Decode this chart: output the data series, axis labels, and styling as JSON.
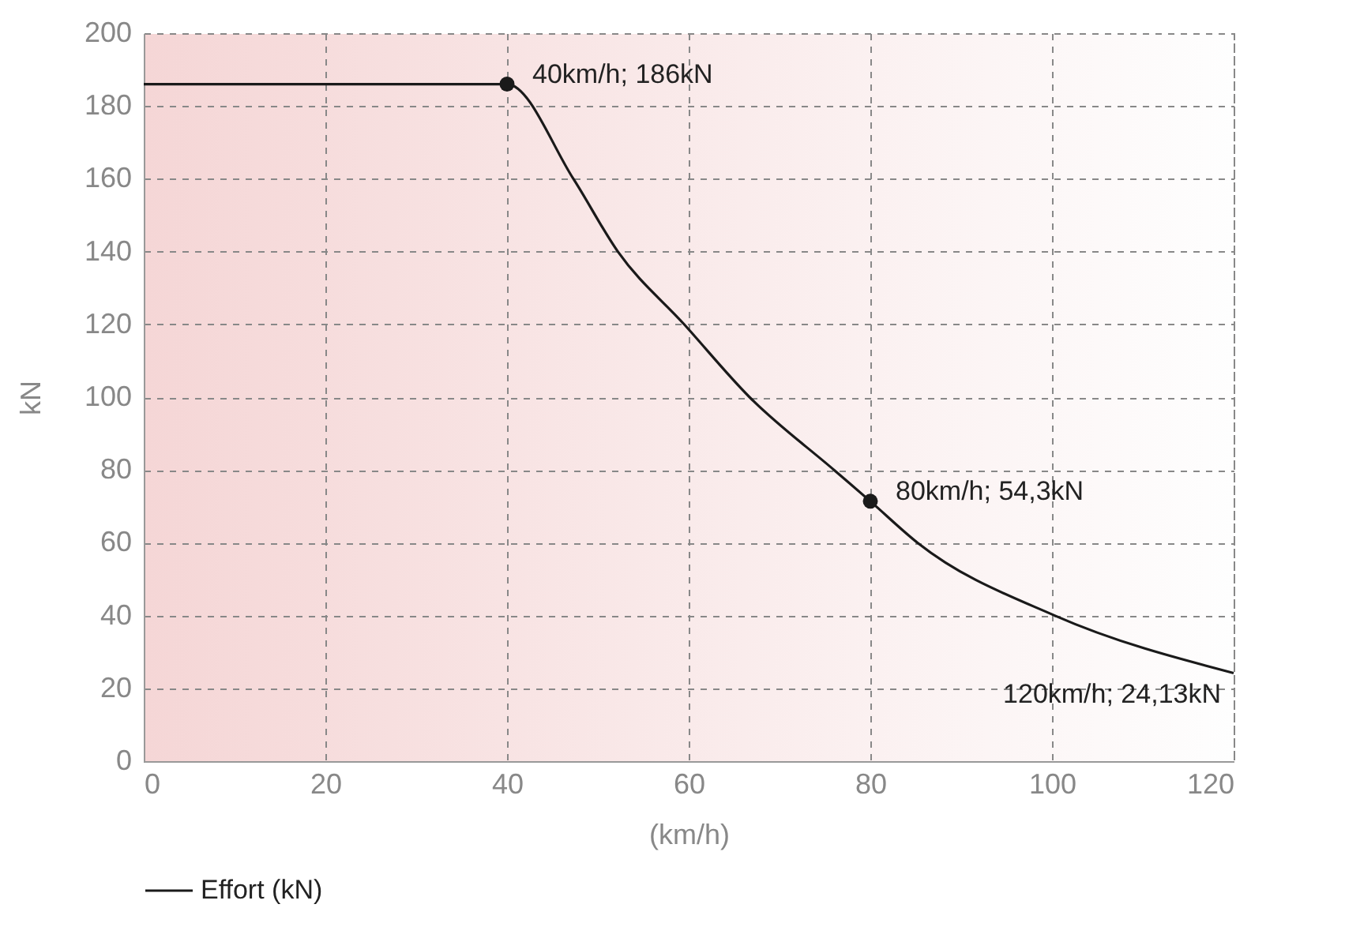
{
  "chart_data": {
    "type": "line",
    "xlabel": "(km/h)",
    "ylabel": "kN",
    "xlim": [
      0,
      120
    ],
    "xticks": [
      0,
      20,
      40,
      60,
      80,
      100,
      120
    ],
    "ylim": [
      0,
      200
    ],
    "yticks": [
      0,
      20,
      40,
      60,
      80,
      100,
      120,
      140,
      160,
      180,
      200
    ],
    "grid": true,
    "legend": "bottom",
    "line_style": "solid",
    "marker": "none",
    "series": [
      {
        "name": "Effort (kN)",
        "color": "#1a1a1a",
        "x": [
          0,
          40,
          47.3,
          52.2,
          59.5,
          66.7,
          76,
          80,
          85.2,
          100.3,
          120
        ],
        "values": [
          186,
          186,
          160,
          140,
          120,
          100,
          80,
          71.4,
          60,
          40,
          24.2
        ]
      },
      {
        "type": "scatter",
        "marker": "circle",
        "color": "#1a1a1a",
        "x": [
          40,
          80
        ],
        "values": [
          186,
          71.4
        ]
      }
    ],
    "annotations": [
      {
        "text": "40km/h; 186kN",
        "x": 40,
        "y": 186
      },
      {
        "text": "80km/h; 54,3kN",
        "x": 80,
        "y": 71.4
      },
      {
        "text": "120km/h; 24,13kN",
        "x": 120,
        "y": 24.2
      }
    ]
  }
}
